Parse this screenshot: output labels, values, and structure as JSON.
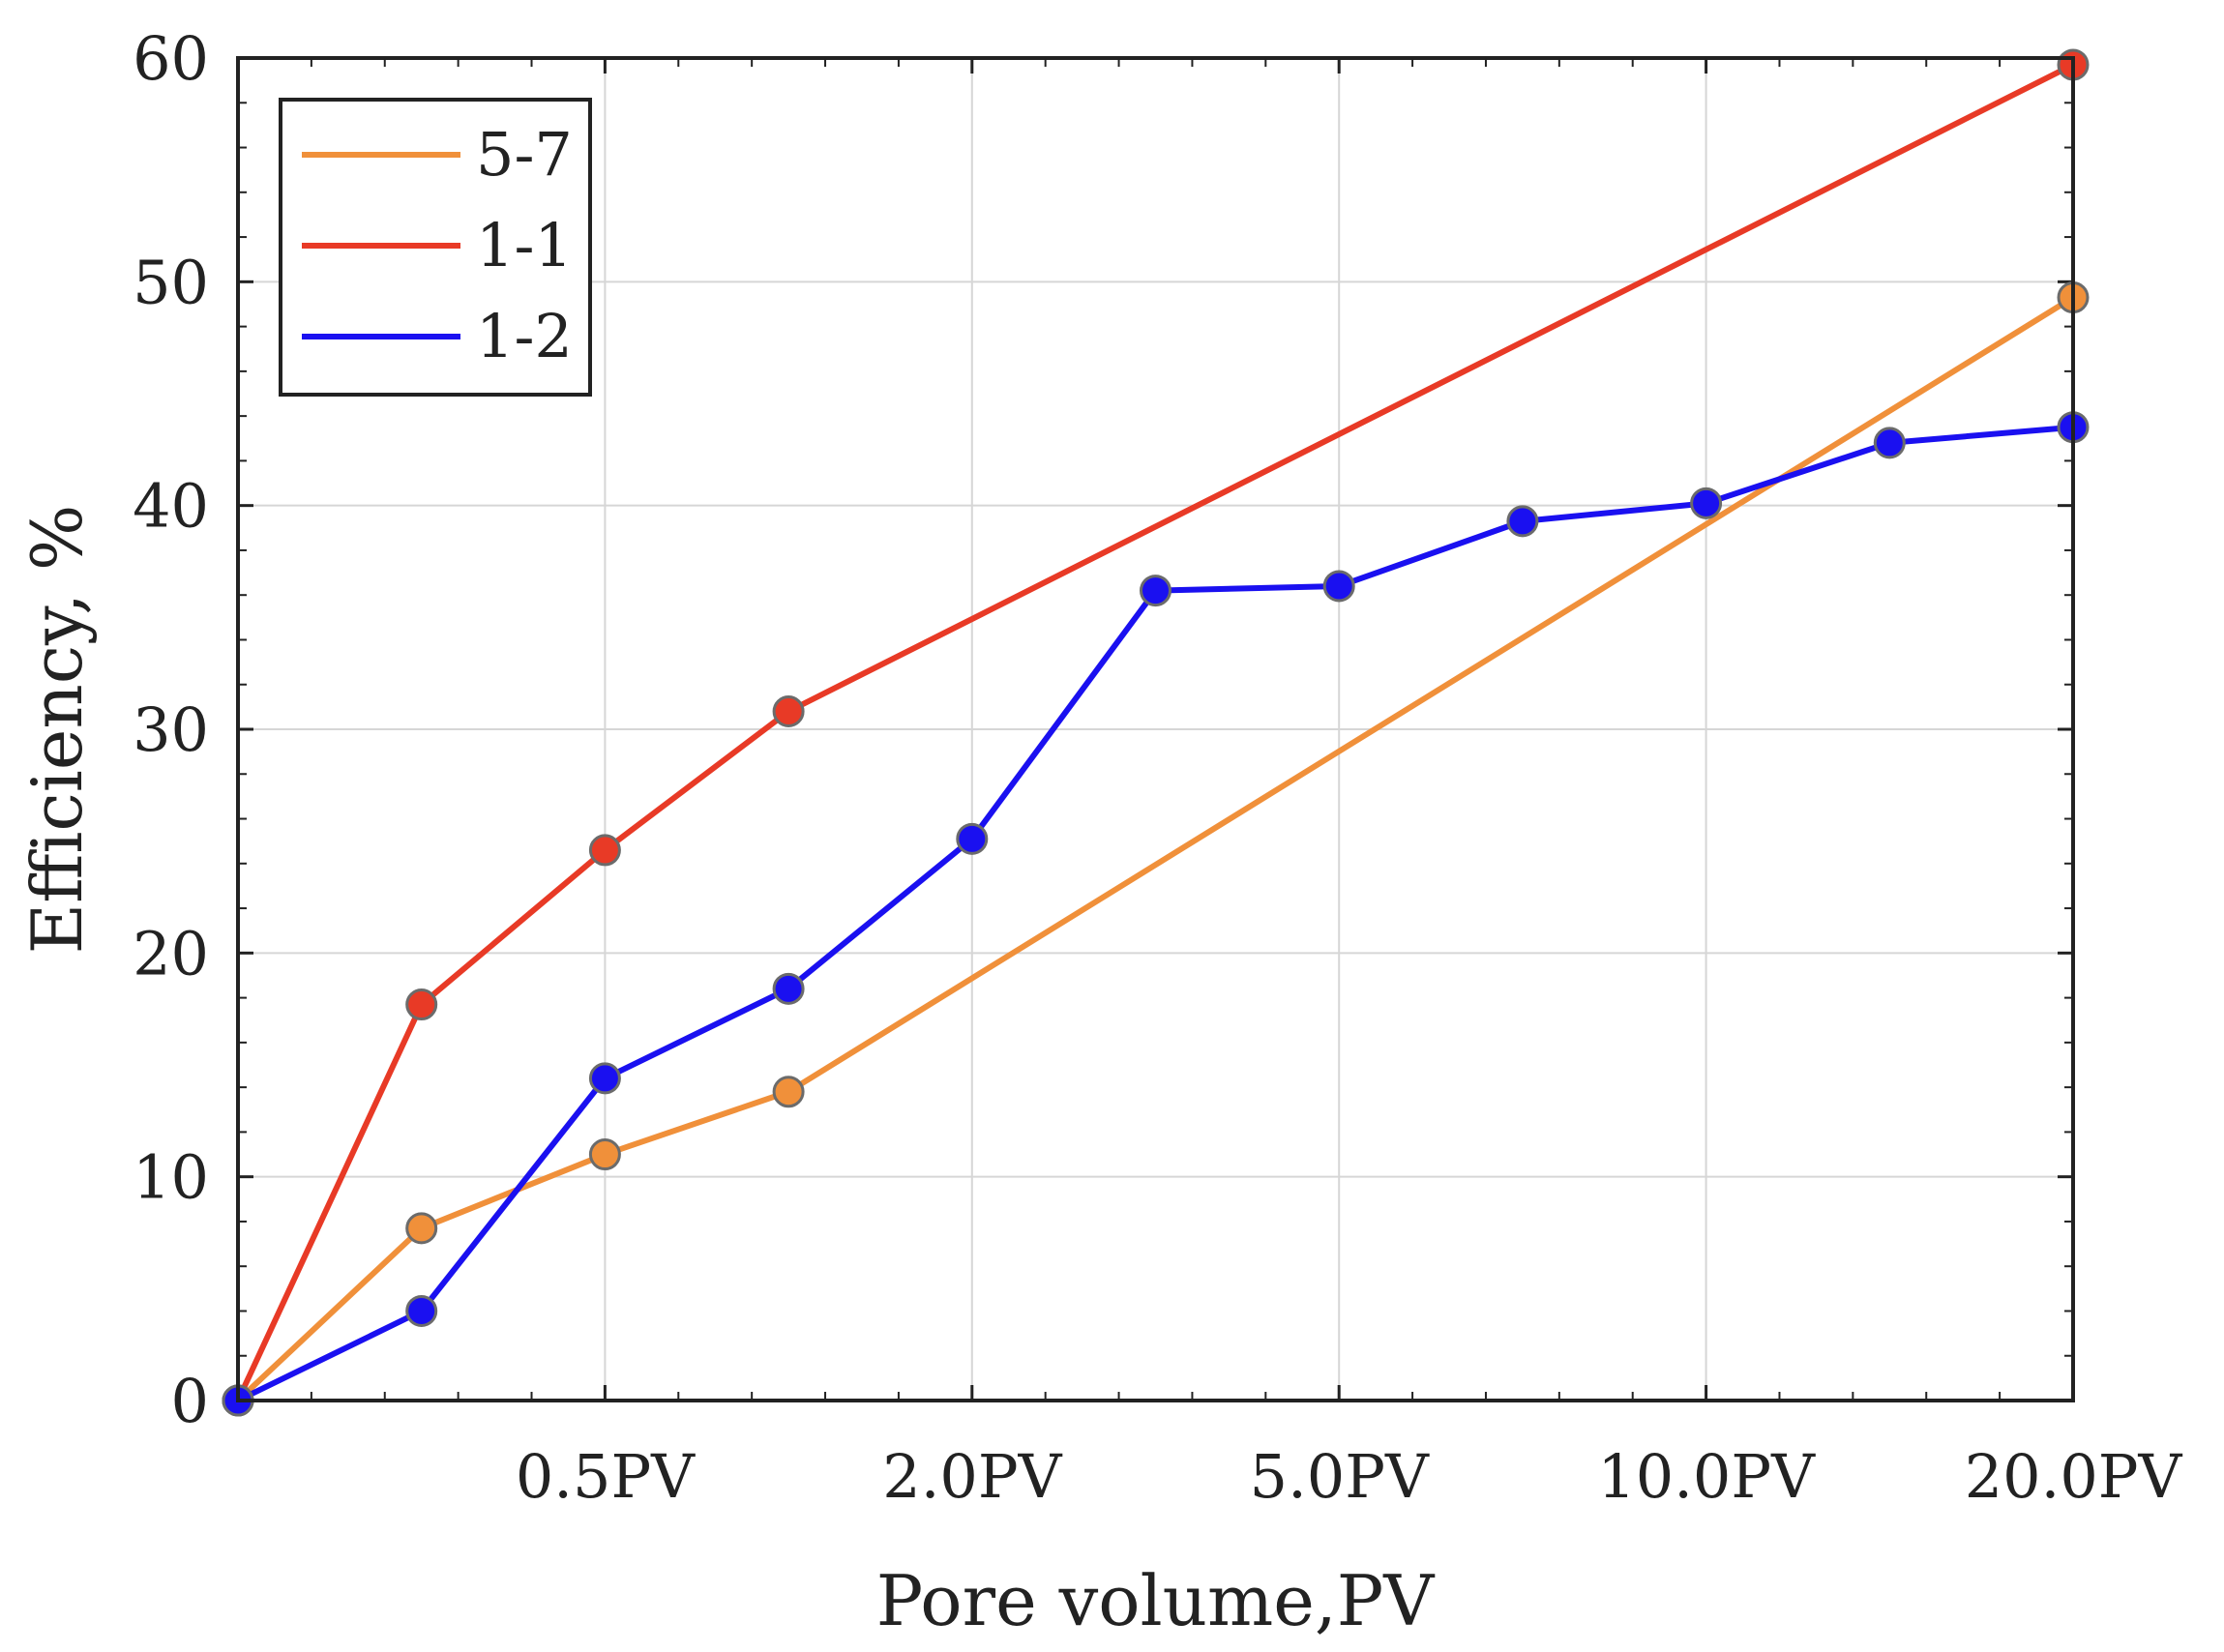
{
  "chart_data": {
    "type": "line",
    "title": "",
    "xlabel": "Pore volume,PV",
    "ylabel": "Efficiency, %",
    "x": [
      0,
      1,
      2,
      3,
      4,
      5,
      6,
      7,
      8,
      9,
      10
    ],
    "xlim": [
      0,
      10
    ],
    "ylim": [
      0,
      60
    ],
    "x_ticks": [
      {
        "x": 2,
        "label": "0.5PV"
      },
      {
        "x": 4,
        "label": "2.0PV"
      },
      {
        "x": 6,
        "label": "5.0PV"
      },
      {
        "x": 8,
        "label": "10.0PV"
      },
      {
        "x": 10,
        "label": "20.0PV"
      }
    ],
    "y_ticks": [
      0,
      10,
      20,
      30,
      40,
      50,
      60
    ],
    "grid": true,
    "legend_position": "top-left",
    "series": [
      {
        "name": "5-7",
        "color": "#f0903a",
        "points": [
          [
            0,
            0
          ],
          [
            1,
            7.7
          ],
          [
            2,
            11.0
          ],
          [
            3,
            13.8
          ],
          [
            10,
            49.3
          ]
        ]
      },
      {
        "name": "1-1",
        "color": "#e83a26",
        "points": [
          [
            0,
            0
          ],
          [
            1,
            17.7
          ],
          [
            2,
            24.6
          ],
          [
            3,
            30.8
          ],
          [
            10,
            59.7
          ]
        ]
      },
      {
        "name": "1-2",
        "color": "#1a10f0",
        "points": [
          [
            0,
            0
          ],
          [
            1,
            4.0
          ],
          [
            2,
            14.4
          ],
          [
            3,
            18.4
          ],
          [
            4,
            25.1
          ],
          [
            5,
            36.2
          ],
          [
            6,
            36.4
          ],
          [
            7,
            39.3
          ],
          [
            8,
            40.1
          ],
          [
            9,
            42.8
          ],
          [
            10,
            43.5
          ]
        ]
      }
    ]
  }
}
